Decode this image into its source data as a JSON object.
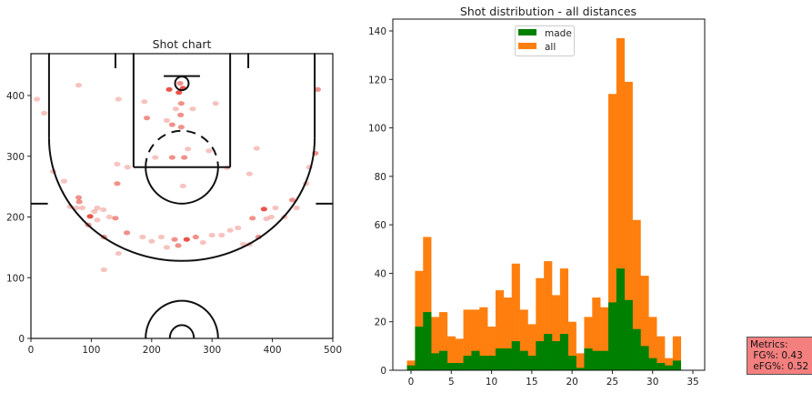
{
  "chart_data": [
    {
      "type": "scatter",
      "title": "Shot chart",
      "xlabel": "",
      "ylabel": "",
      "xlim": [
        0,
        500
      ],
      "ylim": [
        0,
        470
      ],
      "xticks": [
        "0",
        "100",
        "200",
        "300",
        "400",
        "500"
      ],
      "yticks": [
        "0",
        "100",
        "200",
        "300",
        "400"
      ],
      "color": "#e3372a",
      "points": [
        [
          229,
          410,
          3
        ],
        [
          245,
          405,
          3
        ],
        [
          249,
          387,
          2
        ],
        [
          192,
          363,
          2
        ],
        [
          234,
          352,
          2
        ],
        [
          249,
          348,
          2
        ],
        [
          234,
          298,
          2
        ],
        [
          254,
          298,
          2
        ],
        [
          143,
          255,
          2
        ],
        [
          98,
          201,
          3
        ],
        [
          79,
          232,
          2
        ],
        [
          140,
          198,
          2
        ],
        [
          159,
          174,
          2
        ],
        [
          121,
          167,
          2
        ],
        [
          258,
          163,
          3
        ],
        [
          273,
          167,
          2
        ],
        [
          238,
          163,
          2
        ],
        [
          244,
          153,
          2
        ],
        [
          386,
          213,
          3
        ],
        [
          433,
          228,
          2
        ],
        [
          471,
          305,
          2
        ],
        [
          475,
          410,
          2
        ],
        [
          367,
          198,
          2
        ],
        [
          377,
          167,
          2
        ],
        [
          10,
          394,
          1
        ],
        [
          79,
          417,
          1
        ],
        [
          22,
          371,
          1
        ],
        [
          37,
          275,
          1
        ],
        [
          55,
          259,
          1
        ],
        [
          121,
          113,
          1
        ],
        [
          145,
          140,
          1
        ],
        [
          352,
          155,
          1
        ],
        [
          362,
          155,
          1
        ],
        [
          456,
          255,
          1
        ],
        [
          461,
          282,
          1
        ],
        [
          374,
          313,
          1
        ],
        [
          362,
          271,
          1
        ],
        [
          325,
          281,
          1
        ],
        [
          306,
          387,
          1
        ],
        [
          268,
          378,
          1
        ],
        [
          225,
          359,
          1
        ],
        [
          145,
          394,
          1
        ],
        [
          188,
          390,
          1
        ],
        [
          95,
          187,
          2
        ],
        [
          105,
          209,
          1
        ],
        [
          185,
          167,
          1
        ],
        [
          216,
          167,
          1
        ],
        [
          300,
          170,
          1
        ],
        [
          390,
          197,
          1
        ],
        [
          330,
          178,
          1
        ],
        [
          343,
          182,
          1
        ],
        [
          295,
          309,
          1
        ],
        [
          260,
          312,
          1
        ],
        [
          206,
          298,
          1
        ],
        [
          252,
          251,
          1
        ],
        [
          143,
          287,
          1
        ],
        [
          160,
          282,
          1
        ],
        [
          65,
          217,
          1
        ],
        [
          85,
          215,
          1
        ],
        [
          110,
          215,
          1
        ],
        [
          120,
          212,
          1
        ],
        [
          80,
          225,
          2
        ],
        [
          247,
          420,
          2
        ],
        [
          252,
          412,
          3
        ],
        [
          240,
          378,
          1
        ],
        [
          248,
          368,
          2
        ],
        [
          398,
          200,
          1
        ],
        [
          405,
          215,
          1
        ],
        [
          420,
          200,
          1
        ],
        [
          440,
          215,
          1
        ],
        [
          200,
          160,
          1
        ],
        [
          225,
          150,
          1
        ],
        [
          110,
          195,
          1
        ],
        [
          75,
          215,
          1
        ],
        [
          130,
          200,
          1
        ],
        [
          285,
          158,
          1
        ],
        [
          316,
          170,
          1
        ]
      ]
    },
    {
      "type": "bar",
      "title": "Shot distribution - all distances",
      "xlabel": "",
      "ylabel": "",
      "xlim": [
        -2,
        35
      ],
      "ylim": [
        0,
        142
      ],
      "xticks": [
        "0",
        "5",
        "10",
        "15",
        "20",
        "25",
        "30",
        "35"
      ],
      "yticks": [
        "0",
        "20",
        "40",
        "60",
        "80",
        "100",
        "120",
        "140"
      ],
      "legend_position": "top-center",
      "categories": [
        0,
        1,
        2,
        3,
        4,
        5,
        6,
        7,
        8,
        9,
        10,
        11,
        12,
        13,
        14,
        15,
        16,
        17,
        18,
        19,
        20,
        21,
        22,
        23,
        24,
        25,
        26,
        27,
        28,
        29,
        30,
        31,
        32,
        33
      ],
      "series": [
        {
          "name": "all",
          "color": "#ff7f0e",
          "values": [
            4,
            41,
            55,
            22,
            24,
            14,
            13,
            25,
            25,
            26,
            18,
            33,
            30,
            44,
            25,
            19,
            38,
            45,
            31,
            42,
            20,
            7,
            22,
            30,
            26,
            114,
            137,
            119,
            62,
            39,
            22,
            14,
            5,
            14
          ]
        },
        {
          "name": "made",
          "color": "#008000",
          "values": [
            2,
            18,
            24,
            7,
            8,
            3,
            3,
            6,
            8,
            6,
            6,
            9,
            9,
            12,
            8,
            6,
            12,
            15,
            12,
            15,
            6,
            1,
            9,
            8,
            8,
            28,
            42,
            29,
            17,
            10,
            5,
            3,
            2,
            4
          ]
        }
      ]
    }
  ],
  "metrics": {
    "text": "Metrics:\n FG%: 0.43\n eFG%: 0.52"
  }
}
